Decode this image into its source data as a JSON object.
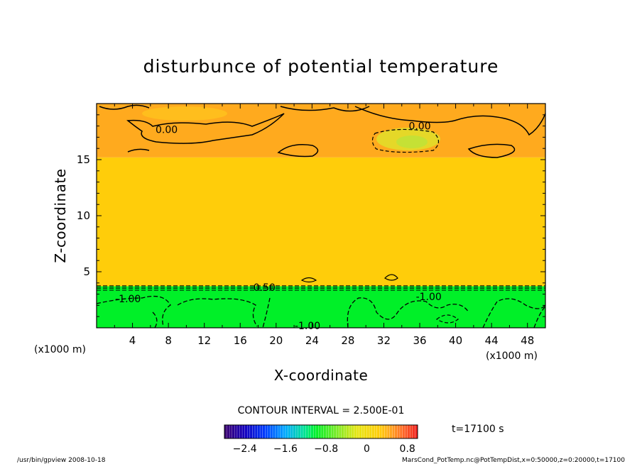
{
  "chart_data": {
    "type": "heatmap",
    "title": "disturbunce of potential temperature",
    "xlabel": "X-coordinate",
    "ylabel": "Z-coordinate",
    "x_unit_left": "(x1000 m)",
    "x_unit_right": "(x1000 m)",
    "xlim": [
      0,
      50
    ],
    "ylim": [
      0,
      20
    ],
    "xticks": [
      4,
      8,
      12,
      16,
      20,
      24,
      28,
      32,
      36,
      40,
      44,
      48
    ],
    "yticks": [
      5,
      10,
      15
    ],
    "xtick_labels": [
      "4",
      "8",
      "12",
      "16",
      "20",
      "24",
      "28",
      "32",
      "36",
      "40",
      "44",
      "48"
    ],
    "ytick_labels": [
      "5",
      "10",
      "15"
    ],
    "layers": [
      {
        "z_from": 0,
        "z_to": 3.7,
        "value": -1.0
      },
      {
        "z_from": 3.7,
        "z_to": 15.2,
        "value": 0.25
      },
      {
        "z_from": 15.2,
        "z_to": 20,
        "value": 0.45
      }
    ],
    "contour_labels": [
      {
        "text": "0.00",
        "x": 7.8,
        "z": 17.7
      },
      {
        "text": "0.00",
        "x": 36.0,
        "z": 18.0
      },
      {
        "text": "-0.50",
        "x": 18.5,
        "z": 3.6
      },
      {
        "text": "-1.00",
        "x": 3.5,
        "z": 2.6
      },
      {
        "text": "-1.00",
        "x": 37.0,
        "z": 2.8
      },
      {
        "text": "-1.00",
        "x": 23.5,
        "z": 0.2
      }
    ],
    "contour_interval_text": "CONTOUR INTERVAL = 2.500E-01",
    "colorbar": {
      "range": [
        -2.8,
        1.0
      ],
      "tick_labels": [
        "−2.4",
        "−1.6",
        "−0.8",
        "0",
        "0.8"
      ],
      "ticks": [
        -2.4,
        -1.6,
        -0.8,
        0,
        0.8
      ]
    },
    "time_text": "t=17100 s",
    "footer_left": "/usr/bin/gpview  2008-10-18",
    "footer_right": "MarsCond_PotTemp.nc@PotTempDist,x=0:50000,z=0:20000,t=17100"
  }
}
